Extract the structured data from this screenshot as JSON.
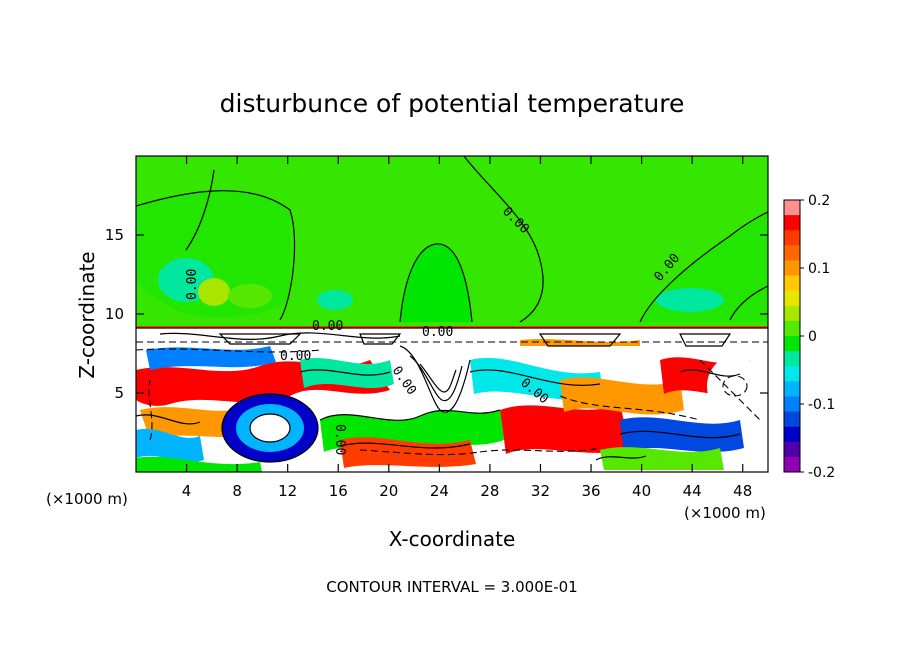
{
  "chart_data": {
    "type": "heatmap",
    "title": "disturbunce of potential temperature",
    "xlabel": "X-coordinate",
    "ylabel": "Z-coordinate",
    "x_unit": "(×1000 m)",
    "x_unit_right": "(×1000 m)",
    "xlim": [
      0,
      50
    ],
    "ylim": [
      0,
      20
    ],
    "x_ticks": [
      4,
      8,
      12,
      16,
      20,
      24,
      28,
      32,
      36,
      40,
      44,
      48
    ],
    "y_ticks": [
      5,
      10,
      15
    ],
    "colorbar": {
      "range": [
        -0.2,
        0.2
      ],
      "tick_labels": [
        "0.2",
        "0.1",
        "0",
        "-0.1",
        "-0.2"
      ],
      "tick_values": [
        0.2,
        0.1,
        0,
        -0.1,
        -0.2
      ],
      "colors": [
        "#ff9090",
        "#ff0000",
        "#ff3c00",
        "#ff6800",
        "#ff9800",
        "#ffc800",
        "#e6e600",
        "#a8e600",
        "#56e800",
        "#00e600",
        "#00e8a0",
        "#00e8e8",
        "#00b4ff",
        "#0080ff",
        "#0048e0",
        "#0000c8",
        "#5000a8",
        "#9000b4"
      ]
    },
    "contour_labels": [
      "0.00",
      "0.00",
      "0.00",
      "0.00",
      "0.00",
      "0.00",
      "0.00",
      "0.00",
      "0.00"
    ],
    "footer": "CONTOUR INTERVAL = 3.000E-01"
  }
}
